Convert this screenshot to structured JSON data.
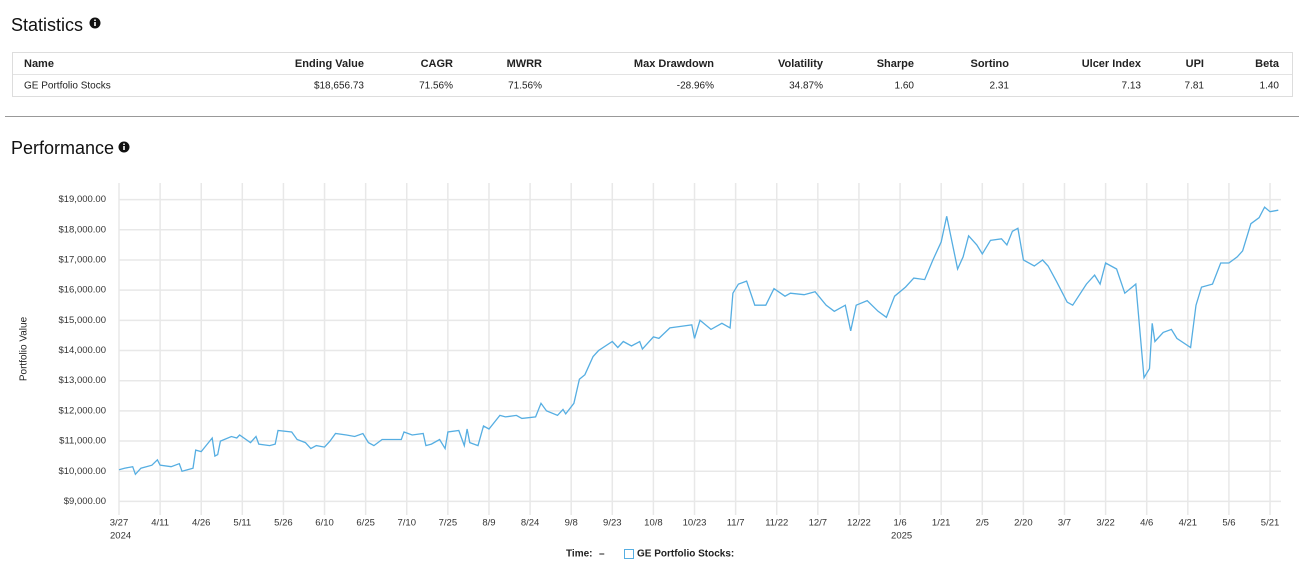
{
  "statistics": {
    "title": "Statistics",
    "columns": [
      "Name",
      "Ending Value",
      "CAGR",
      "MWRR",
      "Max Drawdown",
      "Volatility",
      "Sharpe",
      "Sortino",
      "Ulcer Index",
      "UPI",
      "Beta"
    ],
    "rows": [
      [
        "GE Portfolio Stocks",
        "$18,656.73",
        "71.56%",
        "71.56%",
        "-28.96%",
        "34.87%",
        "1.60",
        "2.31",
        "7.13",
        "7.81",
        "1.40"
      ]
    ]
  },
  "chart_data": {
    "type": "line",
    "title": "Performance",
    "y_label": "Portfolio Value",
    "legend_time_label": "Time:",
    "legend_time_value": "–",
    "grid": true,
    "xlim": [
      "2024-03-27",
      "2025-05-25"
    ],
    "ylim": [
      8550,
      19550
    ],
    "yticks": [
      {
        "value": 9000,
        "label": "$9,000.00"
      },
      {
        "value": 10000,
        "label": "$10,000.00"
      },
      {
        "value": 11000,
        "label": "$11,000.00"
      },
      {
        "value": 12000,
        "label": "$12,000.00"
      },
      {
        "value": 13000,
        "label": "$13,000.00"
      },
      {
        "value": 14000,
        "label": "$14,000.00"
      },
      {
        "value": 15000,
        "label": "$15,000.00"
      },
      {
        "value": 16000,
        "label": "$16,000.00"
      },
      {
        "value": 17000,
        "label": "$17,000.00"
      },
      {
        "value": 18000,
        "label": "$18,000.00"
      },
      {
        "value": 19000,
        "label": "$19,000.00"
      }
    ],
    "xticks": [
      {
        "value": "2024-03-27",
        "label": "3/27"
      },
      {
        "value": "2024-04-11",
        "label": "4/11"
      },
      {
        "value": "2024-04-26",
        "label": "4/26"
      },
      {
        "value": "2024-05-11",
        "label": "5/11"
      },
      {
        "value": "2024-05-26",
        "label": "5/26"
      },
      {
        "value": "2024-06-10",
        "label": "6/10"
      },
      {
        "value": "2024-06-25",
        "label": "6/25"
      },
      {
        "value": "2024-07-10",
        "label": "7/10"
      },
      {
        "value": "2024-07-25",
        "label": "7/25"
      },
      {
        "value": "2024-08-09",
        "label": "8/9"
      },
      {
        "value": "2024-08-24",
        "label": "8/24"
      },
      {
        "value": "2024-09-08",
        "label": "9/8"
      },
      {
        "value": "2024-09-23",
        "label": "9/23"
      },
      {
        "value": "2024-10-08",
        "label": "10/8"
      },
      {
        "value": "2024-10-23",
        "label": "10/23"
      },
      {
        "value": "2024-11-07",
        "label": "11/7"
      },
      {
        "value": "2024-11-22",
        "label": "11/22"
      },
      {
        "value": "2024-12-07",
        "label": "12/7"
      },
      {
        "value": "2024-12-22",
        "label": "12/22"
      },
      {
        "value": "2025-01-06",
        "label": "1/6"
      },
      {
        "value": "2025-01-21",
        "label": "1/21"
      },
      {
        "value": "2025-02-05",
        "label": "2/5"
      },
      {
        "value": "2025-02-20",
        "label": "2/20"
      },
      {
        "value": "2025-03-07",
        "label": "3/7"
      },
      {
        "value": "2025-03-22",
        "label": "3/22"
      },
      {
        "value": "2025-04-06",
        "label": "4/6"
      },
      {
        "value": "2025-04-21",
        "label": "4/21"
      },
      {
        "value": "2025-05-06",
        "label": "5/6"
      },
      {
        "value": "2025-05-21",
        "label": "5/21"
      }
    ],
    "xtick_years": [
      {
        "value": "2024-03-27",
        "label": "2024"
      },
      {
        "value": "2025-01-06",
        "label": "2025"
      }
    ],
    "x": [
      "2024-03-27",
      "2024-03-29",
      "2024-04-01",
      "2024-04-02",
      "2024-04-04",
      "2024-04-08",
      "2024-04-10",
      "2024-04-11",
      "2024-04-15",
      "2024-04-18",
      "2024-04-19",
      "2024-04-23",
      "2024-04-24",
      "2024-04-26",
      "2024-04-30",
      "2024-05-01",
      "2024-05-02",
      "2024-05-03",
      "2024-05-07",
      "2024-05-09",
      "2024-05-10",
      "2024-05-14",
      "2024-05-16",
      "2024-05-17",
      "2024-05-21",
      "2024-05-23",
      "2024-05-24",
      "2024-05-29",
      "2024-05-31",
      "2024-06-03",
      "2024-06-05",
      "2024-06-07",
      "2024-06-10",
      "2024-06-12",
      "2024-06-14",
      "2024-06-18",
      "2024-06-21",
      "2024-06-24",
      "2024-06-26",
      "2024-06-28",
      "2024-07-01",
      "2024-07-05",
      "2024-07-08",
      "2024-07-09",
      "2024-07-12",
      "2024-07-16",
      "2024-07-17",
      "2024-07-19",
      "2024-07-22",
      "2024-07-24",
      "2024-07-25",
      "2024-07-29",
      "2024-07-31",
      "2024-08-01",
      "2024-08-02",
      "2024-08-05",
      "2024-08-07",
      "2024-08-09",
      "2024-08-13",
      "2024-08-15",
      "2024-08-19",
      "2024-08-21",
      "2024-08-26",
      "2024-08-28",
      "2024-08-30",
      "2024-09-03",
      "2024-09-05",
      "2024-09-06",
      "2024-09-09",
      "2024-09-11",
      "2024-09-13",
      "2024-09-16",
      "2024-09-18",
      "2024-09-23",
      "2024-09-25",
      "2024-09-27",
      "2024-09-30",
      "2024-10-03",
      "2024-10-04",
      "2024-10-08",
      "2024-10-10",
      "2024-10-14",
      "2024-10-18",
      "2024-10-22",
      "2024-10-23",
      "2024-10-25",
      "2024-10-29",
      "2024-11-02",
      "2024-11-05",
      "2024-11-06",
      "2024-11-08",
      "2024-11-11",
      "2024-11-14",
      "2024-11-18",
      "2024-11-21",
      "2024-11-25",
      "2024-11-27",
      "2024-12-02",
      "2024-12-06",
      "2024-12-10",
      "2024-12-13",
      "2024-12-17",
      "2024-12-19",
      "2024-12-21",
      "2024-12-25",
      "2024-12-29",
      "2025-01-01",
      "2025-01-04",
      "2025-01-08",
      "2025-01-11",
      "2025-01-15",
      "2025-01-18",
      "2025-01-21",
      "2025-01-23",
      "2025-01-27",
      "2025-01-29",
      "2025-01-31",
      "2025-02-03",
      "2025-02-05",
      "2025-02-08",
      "2025-02-12",
      "2025-02-14",
      "2025-02-16",
      "2025-02-18",
      "2025-02-20",
      "2025-02-24",
      "2025-02-27",
      "2025-03-01",
      "2025-03-04",
      "2025-03-08",
      "2025-03-10",
      "2025-03-15",
      "2025-03-18",
      "2025-03-20",
      "2025-03-22",
      "2025-03-26",
      "2025-03-29",
      "2025-04-02",
      "2025-04-05",
      "2025-04-07",
      "2025-04-08",
      "2025-04-09",
      "2025-04-12",
      "2025-04-15",
      "2025-04-17",
      "2025-04-22",
      "2025-04-24",
      "2025-04-26",
      "2025-04-30",
      "2025-05-03",
      "2025-05-06",
      "2025-05-09",
      "2025-05-11",
      "2025-05-14",
      "2025-05-17",
      "2025-05-19",
      "2025-05-21",
      "2025-05-24"
    ],
    "series": [
      {
        "name": "GE Portfolio Stocks:",
        "color": "#56aee2",
        "values": [
          10050,
          10100,
          10150,
          9900,
          10100,
          10200,
          10380,
          10200,
          10150,
          10250,
          10000,
          10100,
          10700,
          10650,
          11100,
          10500,
          10550,
          11000,
          11150,
          11100,
          11200,
          10950,
          11150,
          10900,
          10850,
          10900,
          11350,
          11300,
          11050,
          10950,
          10750,
          10850,
          10800,
          11000,
          11250,
          11200,
          11150,
          11250,
          10950,
          10850,
          11050,
          11050,
          11050,
          11300,
          11200,
          11250,
          10850,
          10900,
          11050,
          10750,
          11300,
          11350,
          10850,
          11400,
          10950,
          10850,
          11500,
          11400,
          11850,
          11800,
          11850,
          11750,
          11800,
          12250,
          12000,
          11850,
          12050,
          11900,
          12250,
          13050,
          13200,
          13800,
          14000,
          14300,
          14100,
          14300,
          14150,
          14300,
          14050,
          14450,
          14400,
          14750,
          14800,
          14850,
          14400,
          15000,
          14700,
          14900,
          14750,
          15900,
          16200,
          16300,
          15500,
          15500,
          16050,
          15800,
          15900,
          15850,
          15950,
          15500,
          15300,
          15500,
          14650,
          15500,
          15650,
          15300,
          15100,
          15800,
          16100,
          16400,
          16350,
          17000,
          17600,
          18450,
          16700,
          17100,
          17800,
          17500,
          17200,
          17650,
          17700,
          17500,
          17950,
          18050,
          17000,
          16800,
          17000,
          16800,
          16300,
          15600,
          15500,
          16200,
          16500,
          16200,
          16900,
          16700,
          15900,
          16200,
          13100,
          13400,
          14900,
          14300,
          14600,
          14700,
          14400,
          14100,
          15500,
          16100,
          16200,
          16900,
          16900,
          17100,
          17300,
          18200,
          18400,
          18750,
          18600,
          18650
        ]
      }
    ]
  }
}
